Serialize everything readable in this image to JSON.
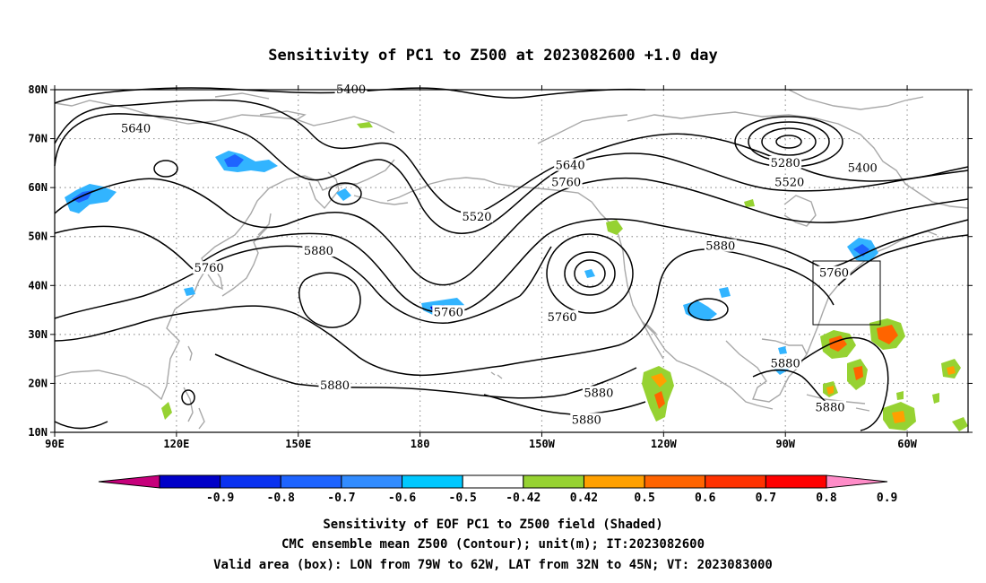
{
  "title": "Sensitivity of PC1 to Z500 at 2023082600 +1.0 day",
  "lat_ticks": [
    "80N",
    "70N",
    "60N",
    "50N",
    "40N",
    "30N",
    "20N",
    "10N"
  ],
  "lon_ticks": [
    "90E",
    "120E",
    "150E",
    "180",
    "150W",
    "120W",
    "90W",
    "60W"
  ],
  "contour_labels": [
    {
      "text": "5400",
      "lon": 163,
      "lat": 80
    },
    {
      "text": "5640",
      "lon": 110,
      "lat": 72
    },
    {
      "text": "5640",
      "lon": 217,
      "lat": 64.5
    },
    {
      "text": "5760",
      "lon": 216,
      "lat": 61
    },
    {
      "text": "5520",
      "lon": 194,
      "lat": 54
    },
    {
      "text": "5280",
      "lon": 270,
      "lat": 65
    },
    {
      "text": "5400",
      "lon": 289,
      "lat": 64
    },
    {
      "text": "5520",
      "lon": 271,
      "lat": 61
    },
    {
      "text": "5760",
      "lon": 128,
      "lat": 43.5
    },
    {
      "text": "5880",
      "lon": 155,
      "lat": 47
    },
    {
      "text": "5880",
      "lon": 254,
      "lat": 48
    },
    {
      "text": "5760",
      "lon": 187,
      "lat": 34.5
    },
    {
      "text": "5760",
      "lon": 215,
      "lat": 33.5
    },
    {
      "text": "5760",
      "lon": 282,
      "lat": 42.5
    },
    {
      "text": "5880",
      "lon": 159,
      "lat": 19.5
    },
    {
      "text": "5880",
      "lon": 224,
      "lat": 18
    },
    {
      "text": "5880",
      "lon": 221,
      "lat": 12.5
    },
    {
      "text": "5880",
      "lon": 270,
      "lat": 24
    },
    {
      "text": "5880",
      "lon": 281,
      "lat": 15
    }
  ],
  "colorbar": {
    "colors": [
      "#c6007b",
      "#0000c8",
      "#0a32f0",
      "#1e64ff",
      "#328cff",
      "#00c8ff",
      "#ffffff",
      "#96d232",
      "#ffa000",
      "#ff6400",
      "#ff3200",
      "#ff0000",
      "#ff8cc8"
    ],
    "labels": [
      "-0.9",
      "-0.8",
      "-0.7",
      "-0.6",
      "-0.5",
      "-0.42",
      "0.42",
      "0.5",
      "0.6",
      "0.7",
      "0.8",
      "0.9"
    ]
  },
  "captions": [
    "Sensitivity of EOF PC1 to Z500 field (Shaded)",
    "CMC ensemble mean Z500 (Contour); unit(m); IT:2023082600",
    "Valid area (box): LON from 79W to 62W, LAT from 32N to 45N; VT: 2023083000"
  ],
  "valid_box": {
    "lon_min": -79,
    "lon_max": -62,
    "lat_min": 32,
    "lat_max": 45
  }
}
